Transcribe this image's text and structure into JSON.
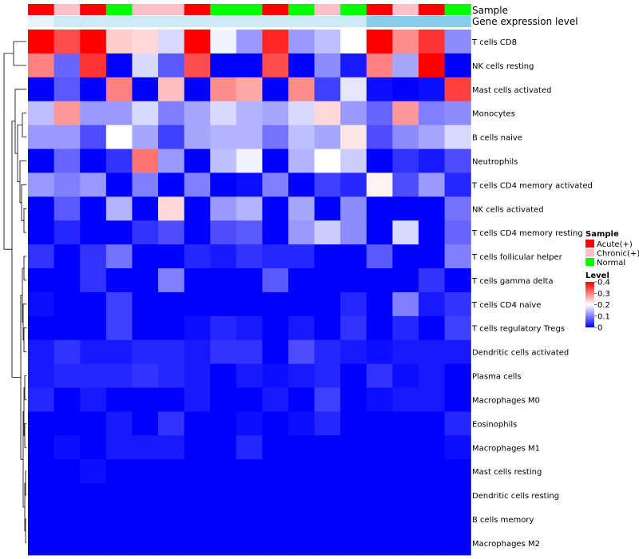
{
  "chart_data": {
    "type": "heatmap",
    "annotation_labels": {
      "sample": "Sample",
      "gene": "Gene expression level"
    },
    "rows": [
      "T cells CD8",
      "NK cells resting",
      "Mast cells activated",
      "Monocytes",
      "B cells naive",
      "Neutrophils",
      "T cells CD4 memory activated",
      "NK cells activated",
      "T cells CD4 memory resting",
      "T cells follicular helper",
      "T cells gamma delta",
      "T cells CD4 naive",
      "T cells regulatory  Tregs",
      "Dendritic cells activated",
      "Plasma cells",
      "Macrophages M0",
      "Eosinophils",
      "Macrophages M1",
      "Mast cells resting",
      "Dendritic cells resting",
      "B cells memory",
      "Macrophages M2"
    ],
    "sample_groups": [
      "Acute",
      "Chronic",
      "Acute",
      "Normal",
      "Chronic",
      "Chronic",
      "Acute",
      "Normal",
      "Normal",
      "Acute",
      "Normal",
      "Chronic",
      "Normal",
      "Acute",
      "Chronic",
      "Acute",
      "Normal"
    ],
    "gene_expression": [
      0,
      1,
      1,
      1,
      1,
      1,
      1,
      1,
      1,
      1,
      1,
      1,
      1,
      2,
      2,
      2,
      2
    ],
    "values": [
      [
        0.4,
        0.34,
        0.4,
        0.24,
        0.23,
        0.17,
        0.4,
        0.19,
        0.12,
        0.37,
        0.12,
        0.15,
        0.2,
        0.4,
        0.29,
        0.36,
        0.11
      ],
      [
        0.3,
        0.08,
        0.36,
        0.0,
        0.17,
        0.07,
        0.34,
        0.0,
        0.0,
        0.34,
        0.0,
        0.11,
        0.02,
        0.3,
        0.13,
        0.4,
        0.0
      ],
      [
        0.0,
        0.07,
        0.0,
        0.3,
        0.0,
        0.25,
        0.0,
        0.29,
        0.27,
        0.0,
        0.29,
        0.05,
        0.18,
        0.01,
        0.0,
        0.01,
        0.35
      ],
      [
        0.15,
        0.28,
        0.12,
        0.12,
        0.17,
        0.1,
        0.13,
        0.17,
        0.14,
        0.13,
        0.17,
        0.23,
        0.12,
        0.08,
        0.28,
        0.1,
        0.11
      ],
      [
        0.12,
        0.12,
        0.06,
        0.2,
        0.13,
        0.05,
        0.13,
        0.14,
        0.14,
        0.09,
        0.15,
        0.13,
        0.22,
        0.06,
        0.11,
        0.13,
        0.17
      ],
      [
        0.0,
        0.08,
        0.0,
        0.04,
        0.31,
        0.12,
        0.0,
        0.15,
        0.19,
        0.0,
        0.14,
        0.2,
        0.16,
        0.0,
        0.04,
        0.02,
        0.06
      ],
      [
        0.12,
        0.1,
        0.12,
        0.0,
        0.1,
        0.0,
        0.1,
        0.0,
        0.01,
        0.1,
        0.0,
        0.05,
        0.03,
        0.21,
        0.06,
        0.12,
        0.03
      ],
      [
        0.0,
        0.07,
        0.0,
        0.14,
        0.0,
        0.23,
        0.0,
        0.12,
        0.14,
        0.0,
        0.13,
        0.0,
        0.11,
        0.0,
        0.0,
        0.0,
        0.09
      ],
      [
        0.0,
        0.03,
        0.0,
        0.0,
        0.04,
        0.06,
        0.0,
        0.06,
        0.07,
        0.0,
        0.12,
        0.16,
        0.11,
        0.0,
        0.17,
        0.0,
        0.08
      ],
      [
        0.04,
        0.0,
        0.04,
        0.09,
        0.0,
        0.0,
        0.03,
        0.02,
        0.04,
        0.03,
        0.03,
        0.0,
        0.0,
        0.07,
        0.0,
        0.0,
        0.1
      ],
      [
        0.0,
        0.0,
        0.04,
        0.0,
        0.0,
        0.1,
        0.0,
        0.0,
        0.0,
        0.07,
        0.0,
        0.0,
        0.0,
        0.0,
        0.0,
        0.04,
        0.0
      ],
      [
        0.01,
        0.0,
        0.0,
        0.05,
        0.0,
        0.0,
        0.0,
        0.0,
        0.0,
        0.0,
        0.0,
        0.0,
        0.03,
        0.0,
        0.1,
        0.02,
        0.04
      ],
      [
        0.0,
        0.0,
        0.0,
        0.05,
        0.0,
        0.0,
        0.01,
        0.03,
        0.02,
        0.0,
        0.02,
        0.0,
        0.04,
        0.0,
        0.03,
        0.0,
        0.05
      ],
      [
        0.02,
        0.04,
        0.02,
        0.02,
        0.03,
        0.03,
        0.02,
        0.04,
        0.04,
        0.0,
        0.06,
        0.03,
        0.02,
        0.01,
        0.02,
        0.02,
        0.02
      ],
      [
        0.02,
        0.03,
        0.03,
        0.03,
        0.04,
        0.03,
        0.02,
        0.0,
        0.02,
        0.01,
        0.02,
        0.03,
        0.0,
        0.04,
        0.01,
        0.02,
        0.0
      ],
      [
        0.03,
        0.0,
        0.02,
        0.0,
        0.0,
        0.0,
        0.02,
        0.0,
        0.0,
        0.02,
        0.0,
        0.05,
        0.0,
        0.01,
        0.02,
        0.02,
        0.0
      ],
      [
        0.0,
        0.0,
        0.0,
        0.02,
        0.0,
        0.04,
        0.0,
        0.0,
        0.01,
        0.0,
        0.01,
        0.03,
        0.0,
        0.0,
        0.0,
        0.0,
        0.03
      ],
      [
        0.0,
        0.01,
        0.0,
        0.02,
        0.02,
        0.02,
        0.0,
        0.0,
        0.03,
        0.0,
        0.0,
        0.0,
        0.0,
        0.0,
        0.0,
        0.0,
        0.01
      ],
      [
        0.0,
        0.0,
        0.01,
        0.0,
        0.0,
        0.0,
        0.0,
        0.0,
        0.0,
        0.0,
        0.0,
        0.0,
        0.0,
        0.0,
        0.0,
        0.0,
        0.0
      ],
      [
        0.0,
        0.0,
        0.0,
        0.0,
        0.0,
        0.0,
        0.0,
        0.0,
        0.0,
        0.0,
        0.0,
        0.0,
        0.0,
        0.0,
        0.0,
        0.0,
        0.0
      ],
      [
        0.0,
        0.0,
        0.0,
        0.0,
        0.0,
        0.0,
        0.0,
        0.0,
        0.0,
        0.0,
        0.0,
        0.0,
        0.0,
        0.0,
        0.0,
        0.0,
        0.0
      ],
      [
        0.0,
        0.0,
        0.0,
        0.0,
        0.0,
        0.0,
        0.0,
        0.0,
        0.0,
        0.0,
        0.0,
        0.0,
        0.0,
        0.0,
        0.0,
        0.0,
        0.0
      ]
    ],
    "color_scale": {
      "min": 0,
      "max": 0.4,
      "low": "#0000ff",
      "mid": "#ffffff",
      "high": "#ff0000",
      "mid_value": 0.2
    },
    "gene_colors": [
      "#e6f4fb",
      "#cdeaf6",
      "#87ceeb"
    ],
    "dendrogram": "rows",
    "legend": {
      "sample_title": "Sample",
      "sample_entries": [
        {
          "label": "Acute(+)",
          "color": "#ff0000"
        },
        {
          "label": "Chronic(+)",
          "color": "#ffc0cb"
        },
        {
          "label": "Normal",
          "color": "#00ff00"
        }
      ],
      "level_title": "Level",
      "level_ticks": [
        "0.4",
        "0.3",
        "0.2",
        "0.1",
        "0"
      ]
    },
    "placement": "legend right of heatmap"
  }
}
